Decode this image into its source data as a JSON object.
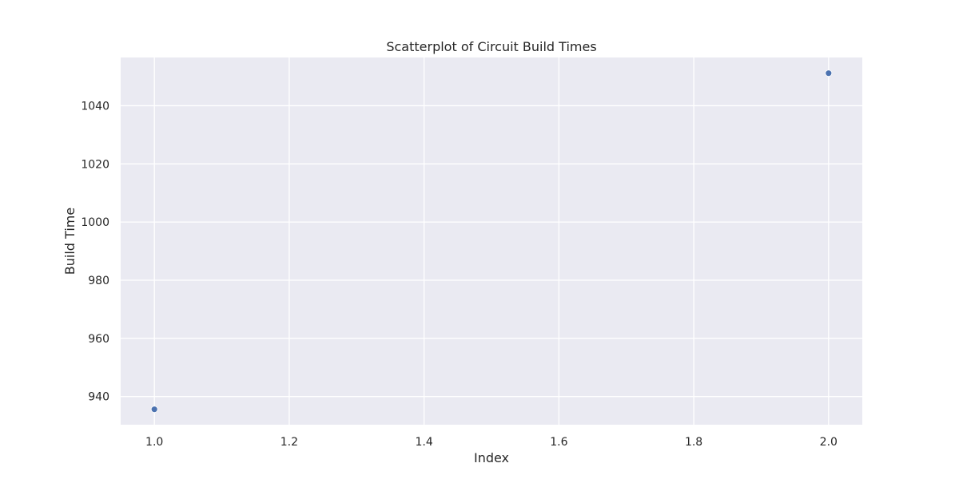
{
  "chart_data": {
    "type": "scatter",
    "title": "Scatterplot of Circuit Build Times",
    "xlabel": "Index",
    "ylabel": "Build Time",
    "xlim": [
      0.95,
      2.05
    ],
    "ylim": [
      930.3,
      1056.6
    ],
    "xticks": [
      1.0,
      1.2,
      1.4,
      1.6,
      1.8,
      2.0
    ],
    "xtick_labels": [
      "1.0",
      "1.2",
      "1.4",
      "1.6",
      "1.8",
      "2.0"
    ],
    "yticks": [
      940,
      960,
      980,
      1000,
      1020,
      1040
    ],
    "ytick_labels": [
      "940",
      "960",
      "980",
      "1000",
      "1020",
      "1040"
    ],
    "grid": true,
    "points": [
      {
        "x": 1.0,
        "y": 935.6
      },
      {
        "x": 2.0,
        "y": 1051.2
      }
    ]
  },
  "colors": {
    "plot_background": "#eaeaf2",
    "grid": "#ffffff",
    "marker": "#4c72b0",
    "text": "#262626"
  }
}
